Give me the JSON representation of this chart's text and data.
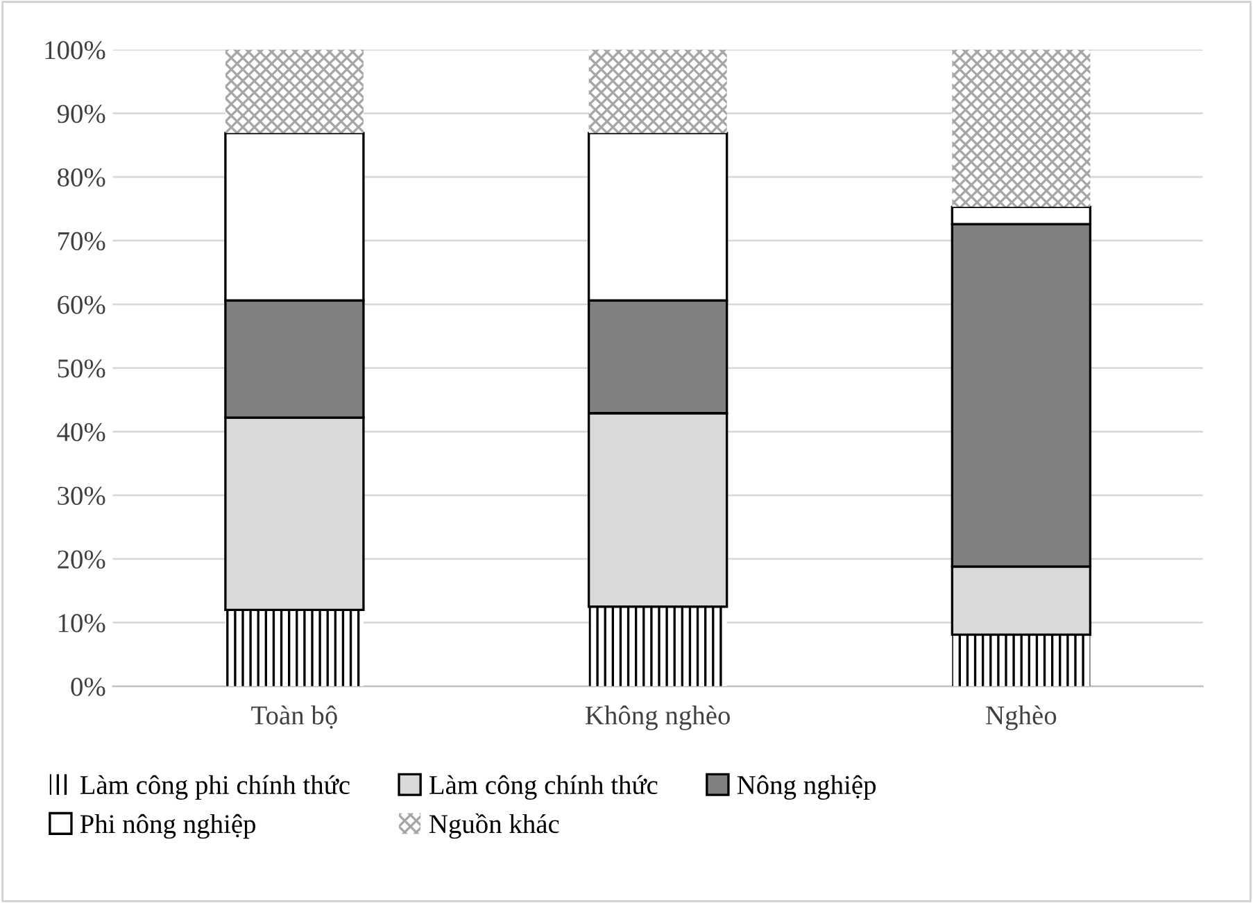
{
  "chart_data": {
    "type": "bar",
    "stacked": true,
    "categories": [
      "Toàn bộ",
      "Không nghèo",
      "Nghèo"
    ],
    "series": [
      {
        "name": "Làm công phi chính thức",
        "color": "#000000",
        "values": [
          12.0,
          12.5,
          8.1
        ]
      },
      {
        "name": "Làm công chính thức",
        "color": "#d9d9d9",
        "values": [
          30.2,
          30.4,
          10.7
        ]
      },
      {
        "name": "Nông nghiệp",
        "color": "#808080",
        "values": [
          18.4,
          17.7,
          53.8
        ]
      },
      {
        "name": "Phi nông nghiệp",
        "color": "#ffffff",
        "values": [
          26.3,
          26.3,
          2.7
        ]
      },
      {
        "name": "Nguồn khác",
        "color": "#a6a6a6",
        "values": [
          13.1,
          13.1,
          24.7
        ]
      }
    ],
    "ylim": [
      0,
      100
    ],
    "yticks": [
      {
        "value": 0,
        "label": "0%"
      },
      {
        "value": 10,
        "label": "10%"
      },
      {
        "value": 20,
        "label": "20%"
      },
      {
        "value": 30,
        "label": "30%"
      },
      {
        "value": 40,
        "label": "40%"
      },
      {
        "value": 50,
        "label": "50%"
      },
      {
        "value": 60,
        "label": "60%"
      },
      {
        "value": 70,
        "label": "70%"
      },
      {
        "value": 80,
        "label": "80%"
      },
      {
        "value": 90,
        "label": "90%"
      },
      {
        "value": 100,
        "label": "100%"
      }
    ],
    "grid": "y",
    "legend": "bottom"
  }
}
